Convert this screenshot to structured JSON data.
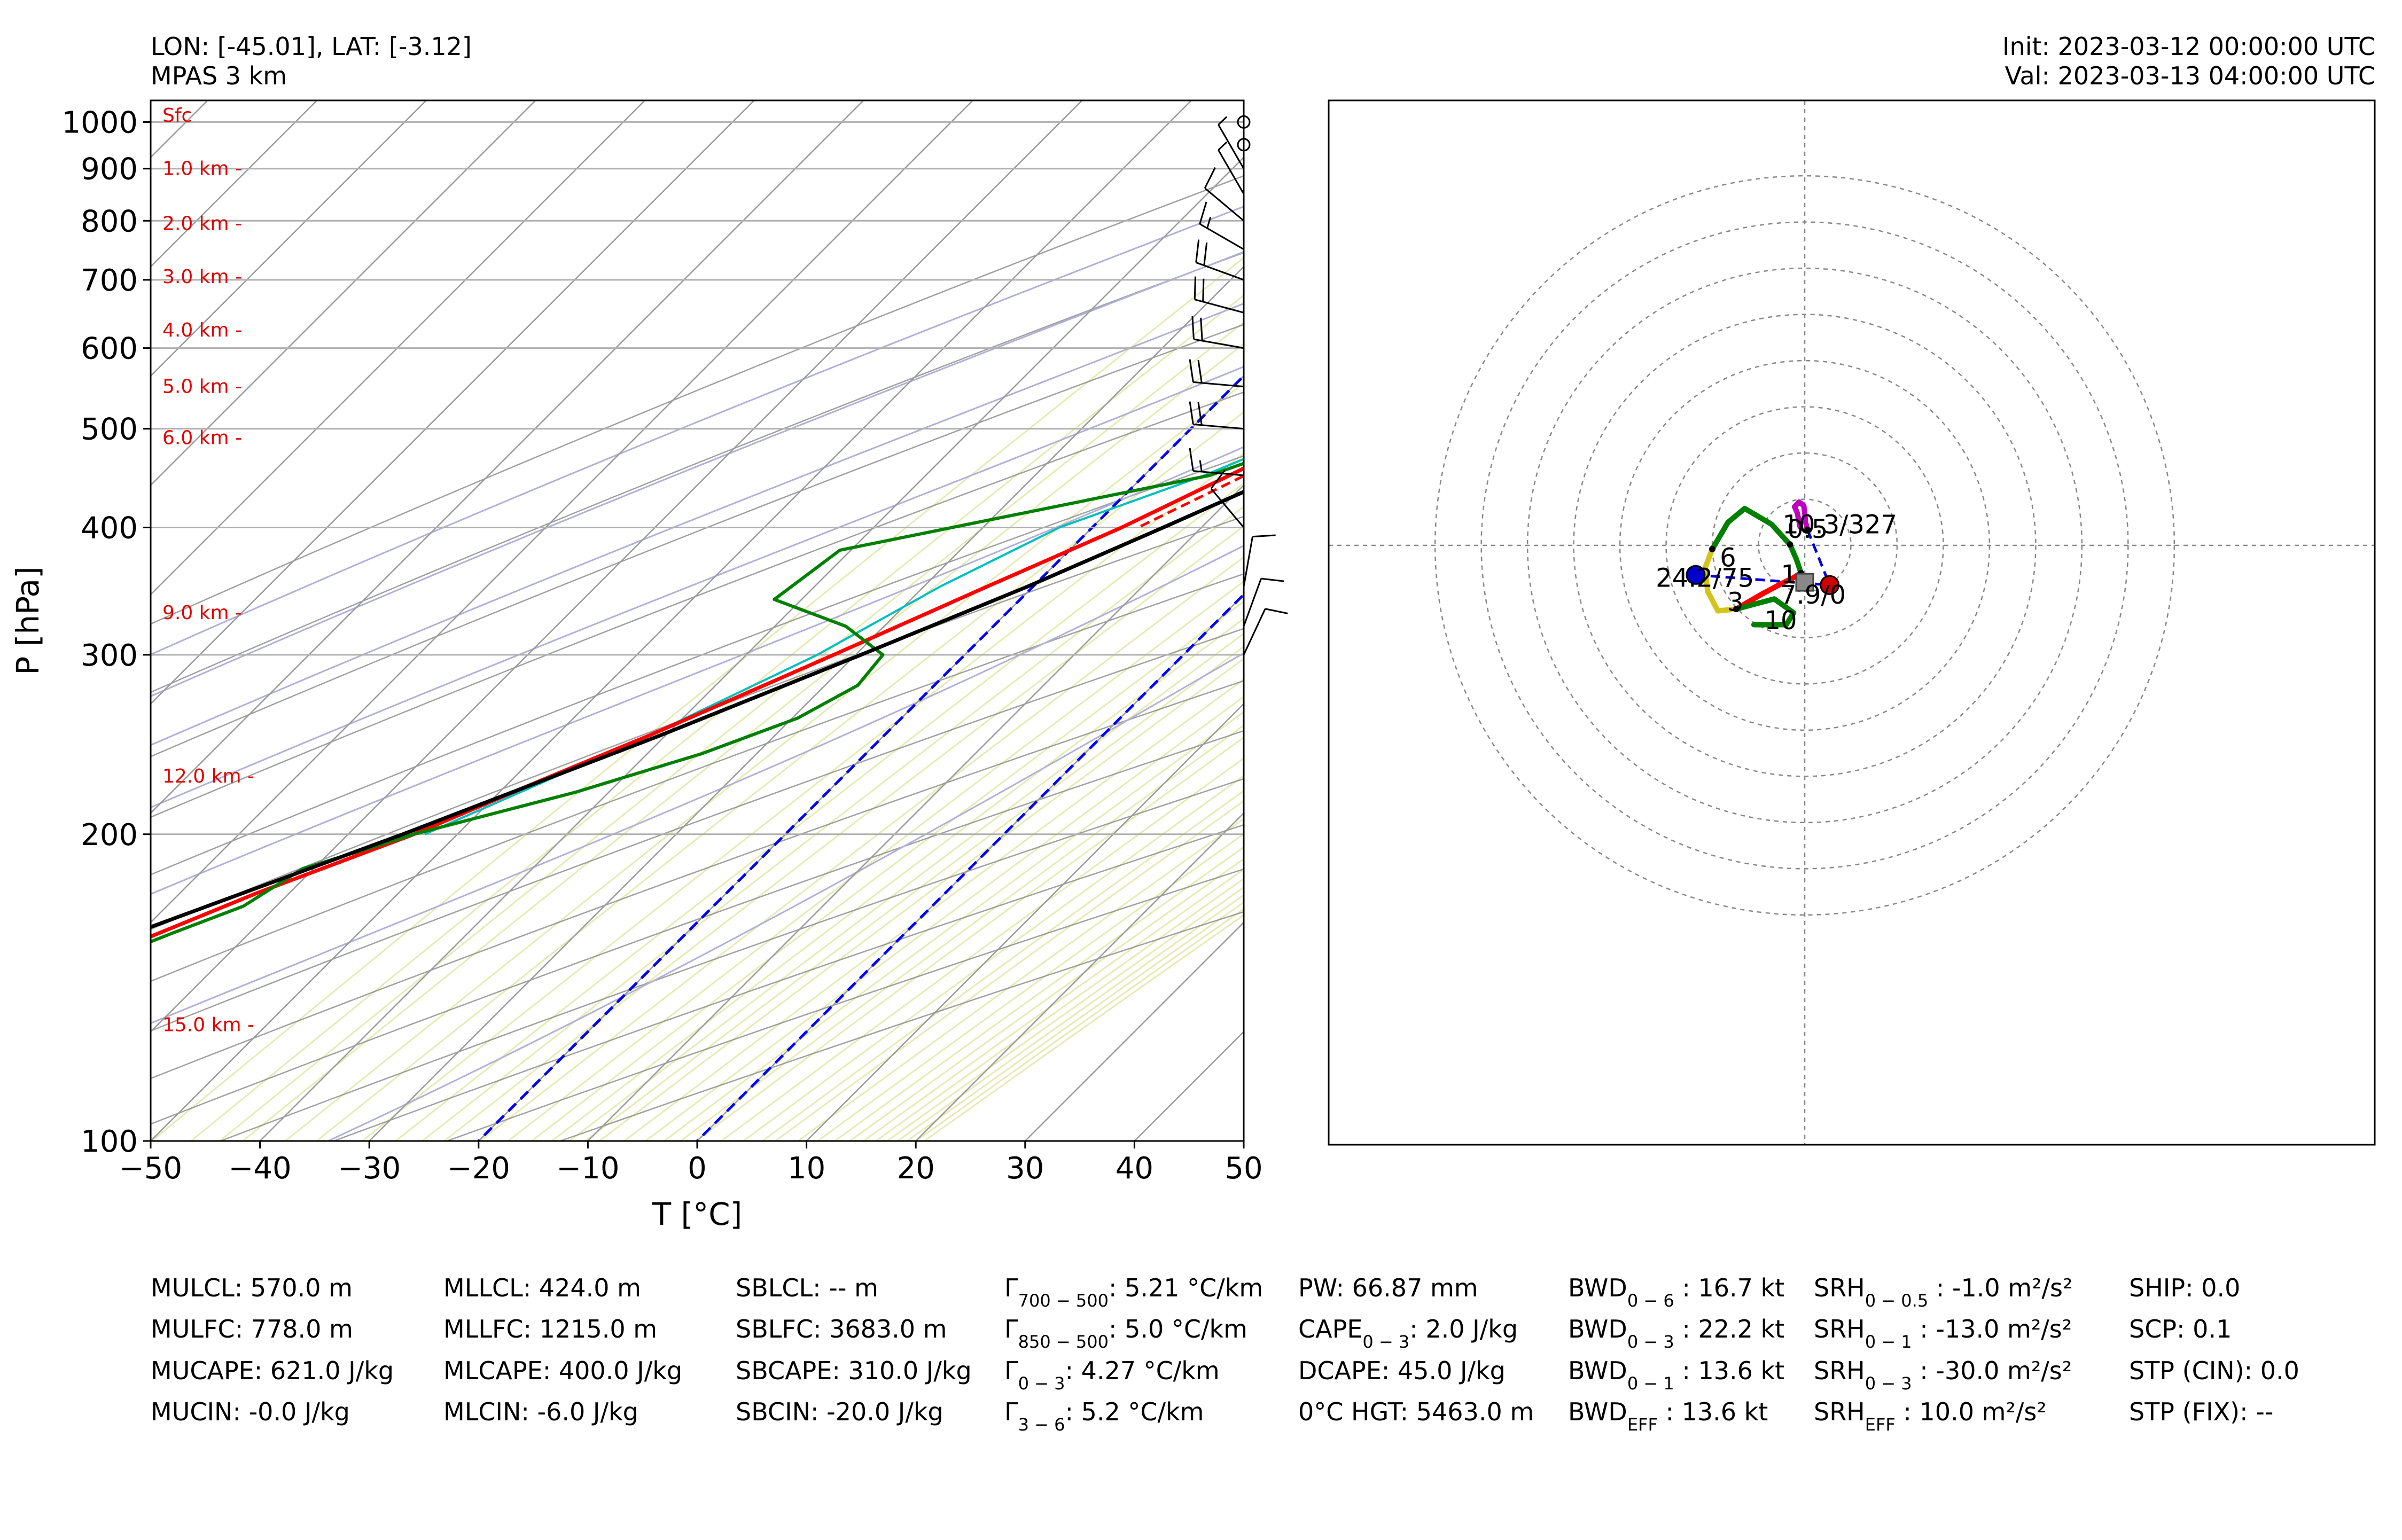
{
  "header": {
    "location": "LON: [-45.01], LAT: [-3.12]",
    "model": "MPAS 3 km",
    "init": "Init: 2023-03-12 00:00:00 UTC",
    "valid": "Val: 2023-03-13 04:00:00 UTC"
  },
  "colors": {
    "temperature": "#ff0000",
    "dewpoint": "#008000",
    "parcel": "#000000",
    "wetbulb": "#00bfbf",
    "virtual_temp": "#ff0000",
    "isotherm_highlight": "#0000ff",
    "dry_adiabat": "#808080",
    "moist_adiabat": "#b0b0d8",
    "mixing_ratio": "#e6ebb4",
    "height_label": "#e00000",
    "hodo_0_1": "#ff0000",
    "hodo_1_3": "#008000",
    "hodo_3_6": "#d4c41a",
    "hodo_6_10": "#008000",
    "hodo_upper": "#c000c0",
    "storm_left": "#0000cc",
    "storm_right": "#cc0000"
  },
  "chart_data": [
    {
      "type": "line",
      "name": "skew-t",
      "xlabel": "T [°C]",
      "ylabel": "P [hPa]",
      "xlim": [
        -50,
        50
      ],
      "ylim": [
        1050,
        100
      ],
      "y_scale": "log",
      "skew_deg": 45,
      "x_ticks": [
        -50,
        -40,
        -30,
        -20,
        -10,
        0,
        10,
        20,
        30,
        40,
        50
      ],
      "x_tick_labels": [
        "−50",
        "−40",
        "−30",
        "−20",
        "−10",
        "0",
        "10",
        "20",
        "30",
        "40",
        "50"
      ],
      "y_ticks": [
        100,
        200,
        300,
        400,
        500,
        600,
        700,
        800,
        900,
        1000
      ],
      "y_tick_labels": [
        "100",
        "200",
        "300",
        "400",
        "500",
        "600",
        "700",
        "800",
        "900",
        "1000"
      ],
      "grid": true,
      "height_labels": [
        {
          "p": 1015,
          "text": "Sfc"
        },
        {
          "p": 900,
          "text": "1.0 km -"
        },
        {
          "p": 795,
          "text": "2.0 km -"
        },
        {
          "p": 705,
          "text": "3.0 km -"
        },
        {
          "p": 625,
          "text": "4.0 km -"
        },
        {
          "p": 550,
          "text": "5.0 km -"
        },
        {
          "p": 490,
          "text": "6.0 km -"
        },
        {
          "p": 330,
          "text": "9.0 km -"
        },
        {
          "p": 228,
          "text": "12.0 km -"
        },
        {
          "p": 130,
          "text": "15.0 km -"
        }
      ],
      "series": [
        {
          "key": "temperature",
          "p": [
            1015,
            1000,
            975,
            950,
            925,
            900,
            850,
            800,
            750,
            700,
            650,
            600,
            550,
            500,
            450,
            400,
            350,
            300,
            275,
            250,
            225,
            200,
            175,
            150,
            125,
            100
          ],
          "t": [
            23.0,
            22.7,
            21.8,
            20.6,
            19.2,
            17.8,
            15.2,
            12.3,
            9.3,
            5.8,
            2.3,
            -1.2,
            -4.8,
            -7.8,
            -12.2,
            -17.3,
            -24.2,
            -32.0,
            -36.5,
            -41.5,
            -47.5,
            -54.0,
            -63.0,
            -72.0,
            -81.5,
            -86.0
          ]
        },
        {
          "key": "virtual_temp",
          "p": [
            1015,
            1000,
            950,
            900,
            850,
            800,
            750,
            700,
            650,
            600,
            550,
            500,
            450,
            400
          ],
          "t": [
            26.8,
            26.4,
            24.0,
            21.3,
            18.5,
            15.5,
            12.2,
            8.5,
            5.0,
            1.1,
            -2.8,
            -6.5,
            -10.8,
            -15.8
          ]
        },
        {
          "key": "wetbulb",
          "p": [
            1015,
            1000,
            950,
            900,
            850,
            800,
            750,
            700,
            650,
            600,
            550,
            500,
            450,
            400,
            350,
            300,
            250,
            200
          ],
          "t": [
            22.5,
            22.2,
            20.4,
            18.7,
            16.8,
            14.4,
            11.9,
            8.8,
            5.3,
            0.6,
            -4.6,
            -8.5,
            -14.5,
            -23.0,
            -28.5,
            -33.5,
            -41.5,
            -53.0
          ]
        },
        {
          "key": "dewpoint",
          "p": [
            1015,
            1000,
            975,
            950,
            925,
            900,
            850,
            800,
            750,
            700,
            650,
            600,
            550,
            500,
            475,
            450,
            380,
            340,
            320,
            300,
            280,
            260,
            240,
            220,
            200,
            185,
            170,
            160,
            150,
            140,
            125,
            110,
            100
          ],
          "t": [
            23.1,
            22.8,
            21.9,
            20.7,
            19.3,
            17.9,
            15.3,
            12.4,
            9.4,
            5.9,
            2.4,
            -1.3,
            -4.6,
            -7.8,
            -10.0,
            -14.0,
            -41.0,
            -42.5,
            -33.5,
            -27.5,
            -27.0,
            -29.5,
            -35.0,
            -43.0,
            -54.0,
            -61.0,
            -63.0,
            -67.0,
            -71.0,
            -73.0,
            -72.0,
            -75.0,
            -81.0
          ]
        },
        {
          "key": "parcel",
          "p": [
            1000,
            950,
            920,
            900,
            850,
            800,
            750,
            700,
            650,
            600,
            550,
            500,
            450,
            400,
            350,
            300,
            250,
            200,
            150,
            125,
            100
          ],
          "t": [
            29.0,
            25.4,
            23.6,
            22.8,
            20.6,
            18.1,
            15.4,
            12.4,
            9.2,
            5.7,
            1.9,
            -2.4,
            -7.5,
            -13.5,
            -20.5,
            -29.5,
            -40.5,
            -55.0,
            -75.0,
            -89.0,
            -101.0
          ]
        }
      ],
      "isotherm_highlights": [
        0,
        -20
      ],
      "wind_barbs": [
        {
          "p": 1000,
          "spd": 2,
          "dir": 90
        },
        {
          "p": 950,
          "spd": 2,
          "dir": 120
        },
        {
          "p": 900,
          "spd": 3,
          "dir": 330
        },
        {
          "p": 850,
          "spd": 6,
          "dir": 330
        },
        {
          "p": 800,
          "spd": 10,
          "dir": 310
        },
        {
          "p": 750,
          "spd": 15,
          "dir": 300
        },
        {
          "p": 700,
          "spd": 20,
          "dir": 290
        },
        {
          "p": 650,
          "spd": 22,
          "dir": 285
        },
        {
          "p": 600,
          "spd": 22,
          "dir": 280
        },
        {
          "p": 550,
          "spd": 20,
          "dir": 275
        },
        {
          "p": 500,
          "spd": 18,
          "dir": 275
        },
        {
          "p": 450,
          "spd": 15,
          "dir": 275
        },
        {
          "p": 400,
          "spd": 10,
          "dir": 320
        },
        {
          "p": 350,
          "spd": 8,
          "dir": 10
        },
        {
          "p": 320,
          "spd": 10,
          "dir": 20
        },
        {
          "p": 300,
          "spd": 12,
          "dir": 25
        }
      ]
    },
    {
      "type": "line",
      "name": "hodograph",
      "xlim": [
        -30,
        30
      ],
      "ylim": [
        -30,
        30
      ],
      "rings": [
        5,
        10,
        15,
        20,
        25,
        30,
        35,
        40
      ],
      "segments": [
        {
          "key": "hodo_0_1",
          "points": [
            [
              -0.4,
              -3.0
            ],
            [
              -1.2,
              -3.5
            ],
            [
              -2.6,
              -4.2
            ],
            [
              -4.5,
              -5.2
            ],
            [
              -6.4,
              -6.3
            ],
            [
              -7.4,
              -6.9
            ]
          ]
        },
        {
          "key": "hodo_1_3",
          "points": [
            [
              -0.4,
              -3.0
            ],
            [
              -0.9,
              -1.5
            ],
            [
              -1.6,
              0.1
            ]
          ]
        },
        {
          "key": "hodo_1_3b",
          "points": [
            [
              -1.6,
              0.1
            ],
            [
              -3.6,
              2.3
            ],
            [
              -6.5,
              4.0
            ],
            [
              -8.3,
              2.5
            ],
            [
              -10.0,
              -0.4
            ]
          ]
        },
        {
          "key": "hodo_3_6",
          "points": [
            [
              -10.0,
              -0.4
            ],
            [
              -10.8,
              -2.5
            ],
            [
              -10.5,
              -5.0
            ],
            [
              -9.4,
              -7.1
            ],
            [
              -7.4,
              -6.9
            ]
          ]
        },
        {
          "key": "hodo_6_10",
          "points": [
            [
              -7.4,
              -6.9
            ],
            [
              -3.3,
              -5.8
            ],
            [
              -1.2,
              -7.3
            ],
            [
              -2.0,
              -8.6
            ],
            [
              -5.5,
              -8.6
            ]
          ]
        },
        {
          "key": "hodo_upper",
          "points": [
            [
              0.3,
              1.7
            ],
            [
              0.1,
              2.5
            ],
            [
              0.0,
              3.5
            ],
            [
              -0.1,
              4.3
            ],
            [
              -0.6,
              4.7
            ],
            [
              -1.1,
              4.2
            ],
            [
              -0.8,
              3.5
            ],
            [
              -0.5,
              2.0
            ]
          ]
        }
      ],
      "storm_motions": [
        {
          "key": "storm_left",
          "u": -11.8,
          "v": -3.2
        },
        {
          "key": "storm_right",
          "u": 2.7,
          "v": -4.3
        }
      ],
      "mean_wind": {
        "u": 0,
        "v": -4.0
      },
      "labels": [
        {
          "u": -8.3,
          "v": -2.3,
          "text": "6"
        },
        {
          "u": 0.3,
          "v": 0.8,
          "text": "0.5"
        },
        {
          "u": -1.7,
          "v": -4.1,
          "text": "1"
        },
        {
          "u": -7.5,
          "v": -7.1,
          "text": "3"
        },
        {
          "u": -2.6,
          "v": -9.1,
          "text": "10"
        }
      ],
      "annotations": [
        {
          "u": 3.8,
          "v": 1.3,
          "text": "10.3/327"
        },
        {
          "u": -10.8,
          "v": -4.5,
          "text": "24.2/75"
        },
        {
          "u": 0.9,
          "v": -6.3,
          "text": "7.9/0"
        }
      ]
    }
  ],
  "indices": {
    "col1": [
      "MULCL: 570.0 m",
      "MULFC: 778.0 m",
      "MUCAPE: 621.0 J/kg",
      "MUCIN: -0.0 J/kg"
    ],
    "col2": [
      "MLLCL: 424.0 m",
      "MLLFC: 1215.0 m",
      "MLCAPE: 400.0 J/kg",
      "MLCIN: -6.0 J/kg"
    ],
    "col3": [
      "SBLCL: -- m",
      "SBLFC: 3683.0 m",
      "SBCAPE: 310.0 J/kg",
      "SBCIN: -20.0 J/kg"
    ],
    "col4": [
      {
        "base": "Γ",
        "sub": "700 − 500",
        "val": ": 5.21 °C/km"
      },
      {
        "base": "Γ",
        "sub": "850 − 500",
        "val": ": 5.0 °C/km"
      },
      {
        "base": "Γ",
        "sub": "0 − 3",
        "val": ": 4.27 °C/km"
      },
      {
        "base": "Γ",
        "sub": "3 − 6",
        "val": ": 5.2 °C/km"
      }
    ],
    "col5": [
      {
        "base": "PW: 66.87 mm",
        "sub": "",
        "val": ""
      },
      {
        "base": "CAPE",
        "sub": "0 − 3",
        "val": ": 2.0 J/kg"
      },
      {
        "base": "DCAPE: 45.0 J/kg",
        "sub": "",
        "val": ""
      },
      {
        "base": "0°C HGT: 5463.0 m",
        "sub": "",
        "val": ""
      }
    ],
    "col6": [
      {
        "base": "BWD",
        "sub": "0 − 6",
        "val": " : 16.7 kt"
      },
      {
        "base": "BWD",
        "sub": "0 − 3",
        "val": " : 22.2 kt"
      },
      {
        "base": "BWD",
        "sub": "0 − 1",
        "val": " : 13.6 kt"
      },
      {
        "base": "BWD",
        "sub": "EFF",
        "val": " : 13.6 kt"
      }
    ],
    "col7": [
      {
        "base": "SRH",
        "sub": "0 − 0.5",
        "val": " : -1.0 m²/s²"
      },
      {
        "base": "SRH",
        "sub": "0 − 1",
        "val": " : -13.0 m²/s²"
      },
      {
        "base": "SRH",
        "sub": "0 − 3",
        "val": " : -30.0 m²/s²"
      },
      {
        "base": "SRH",
        "sub": "EFF",
        "val": " : 10.0 m²/s²"
      }
    ],
    "col8": [
      "SHIP: 0.0",
      "SCP: 0.1",
      "STP (CIN): 0.0",
      "STP (FIX): --"
    ]
  }
}
